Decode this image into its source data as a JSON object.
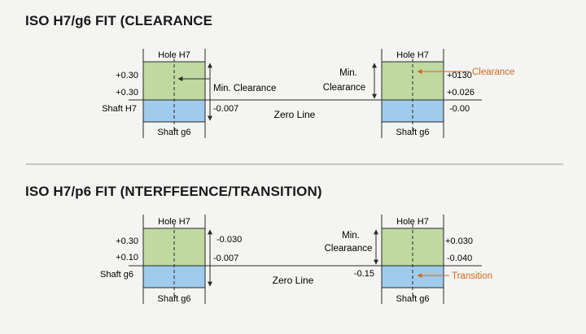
{
  "colors": {
    "hole_fill": "#bfd9a0",
    "shaft_fill": "#9fcbec",
    "line": "#2a2a2a",
    "divider": "#9a9a9a",
    "callout": "#d2691e"
  },
  "sections": [
    {
      "heading": "ISO H7/g6 FIT (CLEARANCE",
      "zero_line": "Zero Line",
      "left": {
        "hole": "Hole H7",
        "shaft": "Shaft g6",
        "hole_upper": "+0.30",
        "hole_lower": "+0.30",
        "side_label": "Shaft H7",
        "right_top": "",
        "right_mid": "Min. Clearance",
        "right_bottom": "-0.007"
      },
      "right": {
        "hole": "Hole H7",
        "shaft": "Shaft g6",
        "min_label_1": "Min.",
        "min_label_2": "Clearance",
        "left_bottom": "",
        "val_1": "+0130",
        "val_2": "+0.026",
        "val_3": "-0.00",
        "callout": "Clearance"
      }
    },
    {
      "heading": "ISO H7/p6 FIT (NTERFFEENCE/TRANSITION)",
      "zero_line": "Zero Line",
      "left": {
        "hole": "Hole H7",
        "shaft": "Shaft g6",
        "hole_upper": "+0.30",
        "hole_lower": "+0.10",
        "side_label": "Shaft g6",
        "right_top": "-0.030",
        "right_mid": "",
        "right_bottom": "-0.007"
      },
      "right": {
        "hole": "Hole H7",
        "shaft": "Shaft g6",
        "min_label_1": "Min.",
        "min_label_2": "Clearaance",
        "left_bottom": "-0.15",
        "val_1": "+0.030",
        "val_2": "-0.040",
        "val_3": "",
        "callout": "Transition"
      }
    }
  ]
}
